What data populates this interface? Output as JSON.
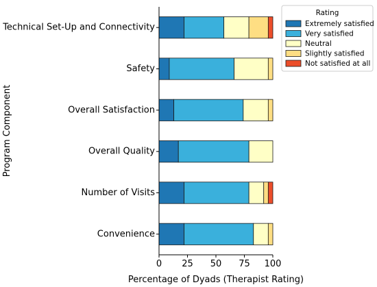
{
  "chart_data": {
    "type": "bar",
    "orientation": "horizontal",
    "stacked": true,
    "title": "",
    "xlabel": "Percentage of Dyads (Therapist Rating)",
    "ylabel": "Program Component",
    "xlim": [
      0,
      100
    ],
    "xticks": [
      "0",
      "25",
      "50",
      "75",
      "100"
    ],
    "grid": false,
    "legend_position": "top-right",
    "legend_title": "Rating",
    "categories": [
      "Technical Set-Up and Connectivity",
      "Safety",
      "Overall Satisfaction",
      "Overall Quality",
      "Number of Visits",
      "Convenience"
    ],
    "series": [
      {
        "name": "Extremely satisfied",
        "color": "#1f77b4",
        "values": [
          22,
          9,
          13,
          17,
          22,
          22
        ]
      },
      {
        "name": "Very satisfied",
        "color": "#3ab0dc",
        "values": [
          35,
          57,
          61,
          62,
          57,
          61
        ]
      },
      {
        "name": "Neutral",
        "color": "#ffffc6",
        "values": [
          22,
          30,
          22,
          21,
          13,
          13
        ]
      },
      {
        "name": "Slightly satisfied",
        "color": "#fede83",
        "values": [
          17,
          4,
          4,
          0,
          4,
          4
        ]
      },
      {
        "name": "Not satisfied at all",
        "color": "#ec4e2a",
        "values": [
          4,
          0,
          0,
          0,
          4,
          0
        ]
      }
    ]
  }
}
